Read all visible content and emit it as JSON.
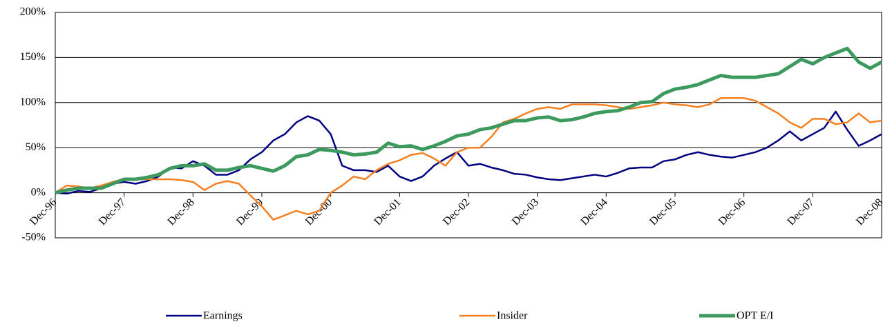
{
  "chart_data": {
    "type": "line",
    "categories": [
      "Dec-96",
      null,
      null,
      null,
      null,
      null,
      "Dec-97",
      null,
      null,
      null,
      null,
      null,
      "Dec-98",
      null,
      null,
      null,
      null,
      null,
      "Dec-99",
      null,
      null,
      null,
      null,
      null,
      "Dec-00",
      null,
      null,
      null,
      null,
      null,
      "Dec-01",
      null,
      null,
      null,
      null,
      null,
      "Dec-02",
      null,
      null,
      null,
      null,
      null,
      "Dec-03",
      null,
      null,
      null,
      null,
      null,
      "Dec-04",
      null,
      null,
      null,
      null,
      null,
      "Dec-05",
      null,
      null,
      null,
      null,
      null,
      "Dec-06",
      null,
      null,
      null,
      null,
      null,
      "Dec-07",
      null,
      null,
      null,
      null,
      null,
      "Dec-08"
    ],
    "series": [
      {
        "name": "Earnings",
        "color": "#000080",
        "width": 2.5,
        "values": [
          0,
          -1,
          2,
          1,
          5,
          10,
          12,
          10,
          13,
          18,
          28,
          27,
          35,
          30,
          20,
          20,
          25,
          37,
          45,
          58,
          65,
          78,
          85,
          80,
          65,
          30,
          25,
          25,
          23,
          30,
          18,
          13,
          18,
          30,
          38,
          45,
          30,
          32,
          28,
          25,
          21,
          20,
          17,
          15,
          14,
          16,
          18,
          20,
          18,
          22,
          27,
          28,
          28,
          35,
          37,
          42,
          45,
          42,
          40,
          39,
          42,
          45,
          50,
          58,
          68,
          58,
          65,
          72,
          90,
          70,
          52,
          58,
          65
        ]
      },
      {
        "name": "Insider",
        "color": "#f77f1f",
        "width": 2.5,
        "values": [
          0,
          8,
          7,
          5,
          8,
          12,
          15,
          15,
          15,
          15,
          15,
          14,
          12,
          3,
          10,
          13,
          10,
          -3,
          -15,
          -30,
          -25,
          -20,
          -24,
          -20,
          0,
          8,
          18,
          15,
          25,
          32,
          36,
          42,
          44,
          38,
          30,
          45,
          50,
          50,
          62,
          78,
          82,
          88,
          93,
          95,
          93,
          98,
          98,
          98,
          97,
          95,
          93,
          95,
          97,
          100,
          98,
          97,
          95,
          98,
          105,
          105,
          105,
          102,
          95,
          88,
          78,
          72,
          82,
          82,
          76,
          78,
          88,
          78,
          80
        ]
      },
      {
        "name": "OPT E/I",
        "color": "#3d9a5e",
        "width": 5,
        "values": [
          0,
          3,
          5,
          5,
          5,
          10,
          15,
          15,
          17,
          20,
          27,
          30,
          30,
          32,
          25,
          25,
          28,
          30,
          27,
          24,
          30,
          40,
          42,
          48,
          47,
          45,
          42,
          43,
          45,
          55,
          51,
          52,
          48,
          52,
          57,
          63,
          65,
          70,
          72,
          76,
          80,
          80,
          83,
          84,
          80,
          81,
          84,
          88,
          90,
          91,
          95,
          100,
          101,
          110,
          115,
          117,
          120,
          125,
          130,
          128,
          128,
          128,
          130,
          132,
          140,
          148,
          143,
          150,
          155,
          160,
          145,
          138,
          145
        ]
      }
    ],
    "ylim": [
      -50,
      200
    ],
    "yticks": [
      {
        "value": -50,
        "label": "-50%"
      },
      {
        "value": 0,
        "label": "0%"
      },
      {
        "value": 50,
        "label": "50%"
      },
      {
        "value": 100,
        "label": "100%"
      },
      {
        "value": 150,
        "label": "150%"
      },
      {
        "value": 200,
        "label": "200%"
      }
    ],
    "grid": true
  }
}
